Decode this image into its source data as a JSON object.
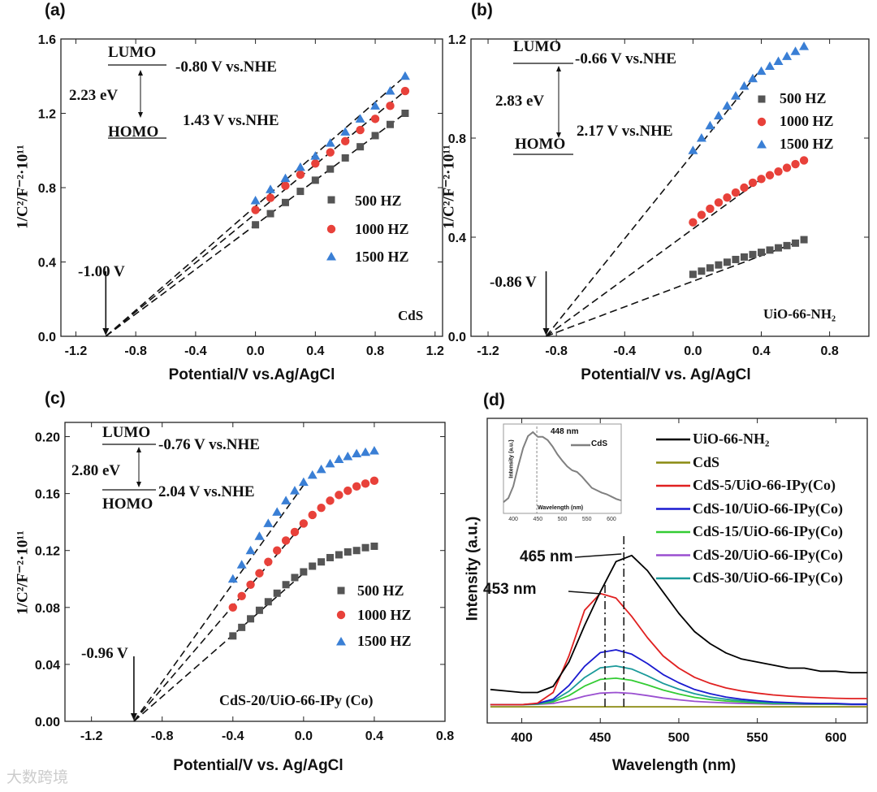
{
  "watermark": "大数跨境",
  "chart_data": [
    {
      "id": "a",
      "type": "scatter",
      "panel_label": "(a)",
      "xlabel": "Potential/V vs.Ag/AgCl",
      "ylabel": "1/C²/F⁻²·10¹¹",
      "xlim": [
        -1.3,
        1.25
      ],
      "ylim": [
        0,
        1.6
      ],
      "xticks": [
        -1.2,
        -0.8,
        -0.4,
        0.0,
        0.4,
        0.8,
        1.2
      ],
      "xtick_labels": [
        "-1.2",
        "-0.8",
        "-0.4",
        "0.0",
        "0.4",
        "0.8",
        "1.2"
      ],
      "yticks": [
        0,
        0.4,
        0.8,
        1.2,
        1.6
      ],
      "ytick_labels": [
        "0.0",
        "0.4",
        "0.8",
        "1.2",
        "1.6"
      ],
      "x": [
        0,
        0.1,
        0.2,
        0.3,
        0.4,
        0.5,
        0.6,
        0.7,
        0.8,
        0.9,
        1.0
      ],
      "series": [
        {
          "name": "500 HZ",
          "marker": "square",
          "color": "#555555",
          "values": [
            0.6,
            0.66,
            0.72,
            0.78,
            0.84,
            0.9,
            0.96,
            1.02,
            1.08,
            1.14,
            1.2
          ]
        },
        {
          "name": "1000 HZ",
          "marker": "circle",
          "color": "#e8413a",
          "values": [
            0.68,
            0.745,
            0.81,
            0.87,
            0.93,
            0.99,
            1.05,
            1.11,
            1.17,
            1.24,
            1.32
          ]
        },
        {
          "name": "1500 HZ",
          "marker": "triangle",
          "color": "#3a7fd5",
          "values": [
            0.73,
            0.79,
            0.85,
            0.91,
            0.97,
            1.04,
            1.1,
            1.17,
            1.24,
            1.32,
            1.4
          ]
        }
      ],
      "fit_lines": [
        [
          [
            -1.0,
            0
          ],
          [
            1.0,
            1.2
          ]
        ],
        [
          [
            -1.0,
            0
          ],
          [
            1.0,
            1.32
          ]
        ],
        [
          [
            -1.0,
            0
          ],
          [
            1.0,
            1.4
          ]
        ]
      ],
      "annotations": {
        "lumo": "LUMO",
        "lumo_value": "-0.80 V vs.NHE",
        "gap": "2.23 eV",
        "homo": "HOMO",
        "homo_value": "1.43 V vs.NHE",
        "sample": "CdS",
        "intercept": "-1.00 V"
      },
      "intercept_x": -1.0
    },
    {
      "id": "b",
      "type": "scatter",
      "panel_label": "(b)",
      "xlabel": "Potential/V vs. Ag/AgCl",
      "ylabel": "1/C²/F⁻²·10¹¹",
      "xlim": [
        -1.3,
        1.03
      ],
      "ylim": [
        0,
        1.2
      ],
      "xticks": [
        -1.2,
        -0.8,
        -0.4,
        0.0,
        0.4,
        0.8
      ],
      "xtick_labels": [
        "-1.2",
        "-0.8",
        "-0.4",
        "0.0",
        "0.4",
        "0.8"
      ],
      "yticks": [
        0,
        0.4,
        0.8,
        1.2
      ],
      "ytick_labels": [
        "0.0",
        "0.4",
        "0.8",
        "1.2"
      ],
      "x": [
        0,
        0.05,
        0.1,
        0.15,
        0.2,
        0.25,
        0.3,
        0.35,
        0.4,
        0.45,
        0.5,
        0.55,
        0.6,
        0.65
      ],
      "series": [
        {
          "name": "500 HZ",
          "marker": "square",
          "color": "#555555",
          "values": [
            0.25,
            0.263,
            0.276,
            0.288,
            0.299,
            0.31,
            0.32,
            0.33,
            0.339,
            0.348,
            0.357,
            0.366,
            0.376,
            0.39
          ]
        },
        {
          "name": "1000 HZ",
          "marker": "circle",
          "color": "#e8413a",
          "values": [
            0.46,
            0.49,
            0.515,
            0.54,
            0.56,
            0.58,
            0.6,
            0.62,
            0.635,
            0.65,
            0.665,
            0.68,
            0.695,
            0.71
          ]
        },
        {
          "name": "1500 HZ",
          "marker": "triangle",
          "color": "#3a7fd5",
          "values": [
            0.75,
            0.8,
            0.85,
            0.89,
            0.93,
            0.97,
            1.01,
            1.04,
            1.07,
            1.09,
            1.11,
            1.13,
            1.15,
            1.17
          ]
        }
      ],
      "fit_lines": [
        [
          [
            -0.86,
            0
          ],
          [
            0.65,
            0.39
          ]
        ],
        [
          [
            -0.86,
            0
          ],
          [
            0.4,
            0.635
          ]
        ],
        [
          [
            -0.86,
            0
          ],
          [
            0.4,
            1.08
          ]
        ]
      ],
      "annotations": {
        "lumo": "LUMO",
        "lumo_value": "-0.66 V vs.NHE",
        "gap": "2.83 eV",
        "homo": "HOMO",
        "homo_value": "2.17 V vs.NHE",
        "sample": "UiO-66-NH₂",
        "intercept": "-0.86 V"
      },
      "intercept_x": -0.86
    },
    {
      "id": "c",
      "type": "scatter",
      "panel_label": "(c)",
      "xlabel": "Potential/V vs. Ag/AgCl",
      "ylabel": "1/C²/F⁻²·10¹¹",
      "xlim": [
        -1.35,
        0.8
      ],
      "ylim": [
        0,
        0.21
      ],
      "xticks": [
        -1.2,
        -0.8,
        -0.4,
        0.0,
        0.4,
        0.8
      ],
      "xtick_labels": [
        "-1.2",
        "-0.8",
        "-0.4",
        "0.0",
        "0.4",
        "0.8"
      ],
      "yticks": [
        0,
        0.04,
        0.08,
        0.12,
        0.16,
        0.2
      ],
      "ytick_labels": [
        "0.00",
        "0.04",
        "0.08",
        "0.12",
        "0.16",
        "0.20"
      ],
      "x": [
        -0.4,
        -0.35,
        -0.3,
        -0.25,
        -0.2,
        -0.15,
        -0.1,
        -0.05,
        0,
        0.05,
        0.1,
        0.15,
        0.2,
        0.25,
        0.3,
        0.35,
        0.4
      ],
      "series": [
        {
          "name": "500 HZ",
          "marker": "square",
          "color": "#555555",
          "values": [
            0.06,
            0.066,
            0.072,
            0.078,
            0.084,
            0.09,
            0.096,
            0.101,
            0.105,
            0.109,
            0.112,
            0.115,
            0.117,
            0.119,
            0.12,
            0.122,
            0.123
          ]
        },
        {
          "name": "1000 HZ",
          "marker": "circle",
          "color": "#e8413a",
          "values": [
            0.08,
            0.088,
            0.096,
            0.104,
            0.112,
            0.12,
            0.127,
            0.133,
            0.139,
            0.145,
            0.15,
            0.155,
            0.159,
            0.162,
            0.165,
            0.167,
            0.169
          ]
        },
        {
          "name": "1500 HZ",
          "marker": "triangle",
          "color": "#3a7fd5",
          "values": [
            0.1,
            0.11,
            0.12,
            0.13,
            0.139,
            0.147,
            0.155,
            0.162,
            0.168,
            0.173,
            0.177,
            0.181,
            0.184,
            0.186,
            0.188,
            0.189,
            0.19
          ]
        }
      ],
      "fit_lines": [
        [
          [
            -0.96,
            0
          ],
          [
            0.0,
            0.104
          ]
        ],
        [
          [
            -0.96,
            0
          ],
          [
            0.0,
            0.139
          ]
        ],
        [
          [
            -0.96,
            0
          ],
          [
            0.0,
            0.166
          ]
        ]
      ],
      "annotations": {
        "lumo": "LUMO",
        "lumo_value": "-0.76 V vs.NHE",
        "gap": "2.80 eV",
        "homo": "HOMO",
        "homo_value": "2.04 V vs.NHE",
        "sample": "CdS-20/UiO-66-IPy (Co)",
        "intercept": "-0.96 V"
      },
      "intercept_x": -0.96
    },
    {
      "id": "d",
      "type": "line",
      "panel_label": "(d)",
      "xlabel": "Wavelength (nm)",
      "ylabel": "Intensity (a.u.)",
      "xlim": [
        378,
        620
      ],
      "ylim": [
        0,
        100
      ],
      "xticks": [
        400,
        450,
        500,
        550,
        600
      ],
      "xtick_labels": [
        "400",
        "450",
        "500",
        "550",
        "600"
      ],
      "x": [
        380,
        390,
        400,
        410,
        420,
        430,
        440,
        450,
        460,
        470,
        480,
        490,
        500,
        510,
        520,
        530,
        540,
        550,
        560,
        570,
        580,
        590,
        600,
        610,
        620
      ],
      "series": [
        {
          "name": "UiO-66-NH₂",
          "color": "#000000",
          "values": [
            11,
            10.5,
            10,
            10,
            12,
            20,
            32,
            43,
            53,
            55,
            50,
            43,
            36,
            30,
            26,
            23,
            21,
            20,
            19,
            18,
            18,
            17,
            17,
            16.5,
            16.5
          ]
        },
        {
          "name": "CdS",
          "color": "#8a8a10",
          "values": [
            5.3,
            5.3,
            5.3,
            5.3,
            5.3,
            5.3,
            5.3,
            5.3,
            5.3,
            5.3,
            5.3,
            5.3,
            5.3,
            5.3,
            5.3,
            5.3,
            5.3,
            5.3,
            5.3,
            5.3,
            5.3,
            5.3,
            5.3,
            5.3,
            5.3
          ]
        },
        {
          "name": "CdS-5/UiO-66-IPy(Co)",
          "color": "#e02020",
          "values": [
            6,
            6,
            6,
            6.5,
            10,
            22,
            37,
            42.5,
            41,
            35,
            28,
            22,
            18,
            15,
            13,
            11.5,
            10.5,
            9.8,
            9.2,
            8.8,
            8.5,
            8.3,
            8.1,
            8,
            8
          ]
        },
        {
          "name": "CdS-10/UiO-66-IPy(Co)",
          "color": "#1a1ad0",
          "values": [
            6,
            6,
            6,
            6.4,
            7.8,
            12.3,
            18.6,
            23.1,
            24,
            22.6,
            19.5,
            15.9,
            13.2,
            11,
            9.6,
            8.5,
            7.8,
            7.3,
            6.9,
            6.7,
            6.5,
            6.4,
            6.4,
            6.2,
            6.2
          ]
        },
        {
          "name": "CdS-15/UiO-66-IPy(Co)",
          "color": "#33cc33",
          "values": [
            6,
            6,
            6,
            6.2,
            6.9,
            9,
            12.1,
            14.3,
            14.7,
            14,
            12.5,
            10.8,
            9.5,
            8.4,
            7.7,
            7.2,
            6.9,
            6.6,
            6.4,
            6.3,
            6.3,
            6.2,
            6.2,
            6.1,
            6.1
          ]
        },
        {
          "name": "CdS-20/UiO-66-IPy(Co)",
          "color": "#9a4fd0",
          "values": [
            6,
            6,
            6,
            6.1,
            6.4,
            7.4,
            8.8,
            9.8,
            10,
            9.7,
            9,
            8.2,
            7.6,
            7.1,
            6.8,
            6.6,
            6.4,
            6.3,
            6.2,
            6.2,
            6.1,
            6.1,
            6.1,
            6,
            6
          ]
        },
        {
          "name": "CdS-30/UiO-66-IPy(Co)",
          "color": "#1a9a9a",
          "values": [
            6,
            6,
            6,
            6.3,
            7.3,
            10.4,
            14.9,
            18.1,
            18.7,
            17.7,
            15.5,
            13,
            11.1,
            9.6,
            8.5,
            7.8,
            7.3,
            6.9,
            6.6,
            6.5,
            6.4,
            6.3,
            6.3,
            6.1,
            6.1
          ]
        }
      ],
      "annotations": {
        "peak1": "465 nm",
        "peak1_x": 465,
        "peak2": "453 nm",
        "peak2_x": 453
      },
      "inset": {
        "type": "line",
        "xlabel": "Wavelength (nm)",
        "ylabel": "Intensity (a.u.)",
        "xlim": [
          380,
          620
        ],
        "xtick_labels": [
          "400",
          "450",
          "500",
          "550",
          "600"
        ],
        "xticks": [
          400,
          450,
          500,
          550,
          600
        ],
        "series_name": "CdS",
        "color": "#808080",
        "peak_label": "448 nm",
        "peak_x": 448,
        "x": [
          380,
          390,
          400,
          410,
          420,
          430,
          440,
          450,
          460,
          470,
          480,
          490,
          500,
          510,
          520,
          530,
          540,
          550,
          560,
          570,
          580,
          590,
          600,
          610,
          620
        ],
        "values": [
          10,
          15,
          30,
          55,
          78,
          93,
          98,
          92,
          92,
          88,
          80,
          70,
          62,
          55,
          50,
          48,
          42,
          35,
          28,
          25,
          22,
          20,
          17,
          14,
          12
        ]
      }
    }
  ]
}
